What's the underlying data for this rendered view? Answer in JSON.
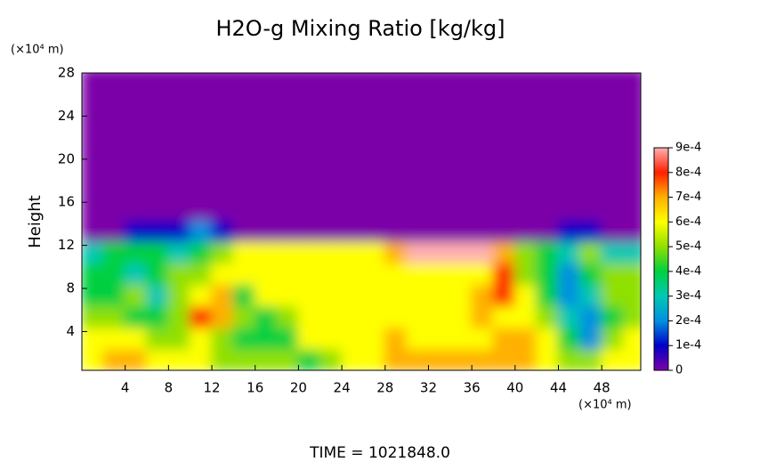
{
  "chart_data": {
    "type": "heatmap",
    "title": "H2O-g Mixing Ratio [kg/kg]",
    "y_axis_label": "Height",
    "y_unit_label": "(×10⁴ m)",
    "x_unit_label": "(×10⁴ m)",
    "footer": "TIME = 1021848.0",
    "xlim": [
      0,
      51.6
    ],
    "ylim": [
      0.4,
      28
    ],
    "xticks": [
      4,
      8,
      12,
      16,
      20,
      24,
      28,
      32,
      36,
      40,
      44,
      48
    ],
    "yticks": [
      4,
      8,
      12,
      16,
      20,
      24,
      28
    ],
    "x": [
      1,
      3,
      5,
      7,
      9,
      11,
      13,
      15,
      17,
      19,
      21,
      23,
      25,
      27,
      29,
      31,
      33,
      35,
      37,
      39,
      41,
      43,
      45,
      47,
      49,
      51
    ],
    "y": [
      1.4,
      3.4,
      5.4,
      7.4,
      9.4,
      11.4,
      13.4,
      15.4,
      17.4,
      19.4,
      21.4,
      23.4,
      25.4,
      27.4
    ],
    "z": [
      [
        0.0006,
        0.0007,
        0.0007,
        0.0006,
        0.0006,
        0.0006,
        0.0005,
        0.0005,
        0.0005,
        0.0005,
        0.0004,
        0.0005,
        0.0006,
        0.0006,
        0.0007,
        0.0007,
        0.0007,
        0.0007,
        0.0007,
        0.0007,
        0.0007,
        0.0006,
        0.0005,
        0.0005,
        0.0006,
        0.0006
      ],
      [
        0.0006,
        0.0006,
        0.0006,
        0.0005,
        0.0005,
        0.0006,
        0.0005,
        0.0004,
        0.0004,
        0.0004,
        0.0006,
        0.0006,
        0.0006,
        0.0006,
        0.0007,
        0.0006,
        0.0006,
        0.0006,
        0.0006,
        0.0007,
        0.0007,
        0.0006,
        0.0004,
        0.0002,
        0.0005,
        0.0006
      ],
      [
        0.0005,
        0.0005,
        0.0004,
        0.0004,
        0.0005,
        0.0008,
        0.0007,
        0.0005,
        0.0004,
        0.0005,
        0.0006,
        0.0006,
        0.0006,
        0.0006,
        0.0006,
        0.0006,
        0.0006,
        0.0006,
        0.0007,
        0.0006,
        0.0006,
        0.0005,
        0.0003,
        0.0002,
        0.0004,
        0.0005
      ],
      [
        0.0004,
        0.0004,
        0.0005,
        0.0003,
        0.0005,
        0.0006,
        0.0007,
        0.0004,
        0.0006,
        0.0006,
        0.0006,
        0.0006,
        0.0006,
        0.0006,
        0.0006,
        0.0006,
        0.0006,
        0.0006,
        0.0007,
        0.0008,
        0.0006,
        0.0004,
        0.0002,
        0.0003,
        0.0005,
        0.0005
      ],
      [
        0.0004,
        0.0004,
        0.0003,
        0.0004,
        0.0005,
        0.0005,
        0.0006,
        0.0006,
        0.0006,
        0.0006,
        0.0006,
        0.0006,
        0.0006,
        0.0006,
        0.0006,
        0.0006,
        0.0006,
        0.0006,
        0.0006,
        0.0008,
        0.0005,
        0.0004,
        0.0002,
        0.0004,
        0.0005,
        0.0005
      ],
      [
        0.0003,
        0.0004,
        0.0004,
        0.0004,
        0.0003,
        0.0004,
        0.0005,
        0.0006,
        0.0006,
        0.0006,
        0.0006,
        0.0006,
        0.0006,
        0.0006,
        0.0007,
        0.0009,
        0.0009,
        0.0009,
        0.0009,
        0.0007,
        0.0005,
        0.0004,
        0.0003,
        0.0005,
        0.0003,
        0.0003
      ],
      [
        0,
        0,
        0.0001,
        0.0001,
        0.0001,
        0.0002,
        0.0001,
        0,
        0,
        0,
        0,
        0,
        0,
        0,
        0,
        0,
        0,
        0,
        0,
        0,
        0,
        0,
        0.0001,
        0.0001,
        0,
        0
      ],
      [
        0,
        0,
        0,
        0,
        0,
        0,
        0,
        0,
        0,
        0,
        0,
        0,
        0,
        0,
        0,
        0,
        0,
        0,
        0,
        0,
        0,
        0,
        0,
        0,
        0,
        0
      ],
      [
        0,
        0,
        0,
        0,
        0,
        0,
        0,
        0,
        0,
        0,
        0,
        0,
        0,
        0,
        0,
        0,
        0,
        0,
        0,
        0,
        0,
        0,
        0,
        0,
        0,
        0
      ],
      [
        0,
        0,
        0,
        0,
        0,
        0,
        0,
        0,
        0,
        0,
        0,
        0,
        0,
        0,
        0,
        0,
        0,
        0,
        0,
        0,
        0,
        0,
        0,
        0,
        0,
        0
      ],
      [
        0,
        0,
        0,
        0,
        0,
        0,
        0,
        0,
        0,
        0,
        0,
        0,
        0,
        0,
        0,
        0,
        0,
        0,
        0,
        0,
        0,
        0,
        0,
        0,
        0,
        0
      ],
      [
        0,
        0,
        0,
        0,
        0,
        0,
        0,
        0,
        0,
        0,
        0,
        0,
        0,
        0,
        0,
        0,
        0,
        0,
        0,
        0,
        0,
        0,
        0,
        0,
        0,
        0
      ],
      [
        0,
        0,
        0,
        0,
        0,
        0,
        0,
        0,
        0,
        0,
        0,
        0,
        0,
        0,
        0,
        0,
        0,
        0,
        0,
        0,
        0,
        0,
        0,
        0,
        0,
        0
      ],
      [
        0,
        0,
        0,
        0,
        0,
        0,
        0,
        0,
        0,
        0,
        0,
        0,
        0,
        0,
        0,
        0,
        0,
        0,
        0,
        0,
        0,
        0,
        0,
        0,
        0,
        0
      ]
    ],
    "zlim": [
      0,
      0.0009
    ],
    "zticks": [
      0,
      {
        "value": 0.0001,
        "label": "1e-4"
      },
      {
        "value": 0.0002,
        "label": "2e-4"
      },
      {
        "value": 0.0003,
        "label": "3e-4"
      },
      {
        "value": 0.0004,
        "label": "4e-4"
      },
      {
        "value": 0.0005,
        "label": "5e-4"
      },
      {
        "value": 0.0006,
        "label": "6e-4"
      },
      {
        "value": 0.0007,
        "label": "7e-4"
      },
      {
        "value": 0.0008,
        "label": "8e-4"
      },
      {
        "value": 0.0009,
        "label": "9e-4"
      }
    ],
    "colors": [
      "#7c00a8",
      "#0000c8",
      "#0090e0",
      "#00c8b4",
      "#00d040",
      "#90e000",
      "#ffff00",
      "#ffb000",
      "#ff2000",
      "#ffb0b0"
    ]
  }
}
